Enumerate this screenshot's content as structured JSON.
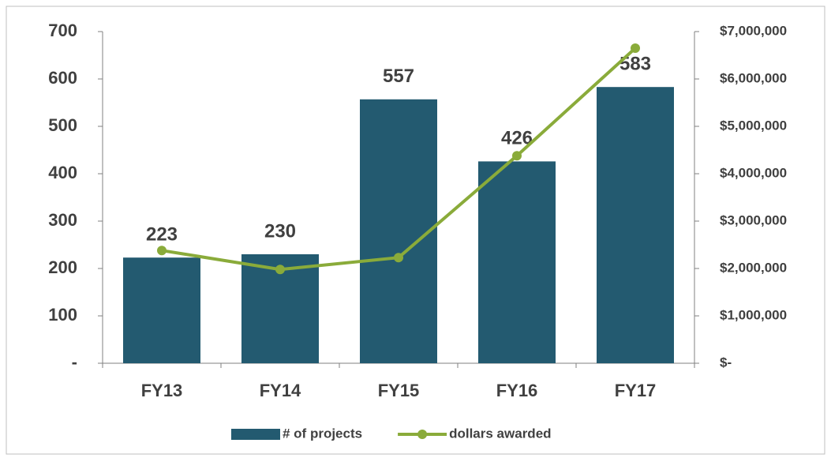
{
  "chart_data": {
    "type": "bar",
    "categories": [
      "FY13",
      "FY14",
      "FY15",
      "FY16",
      "FY17"
    ],
    "series": [
      {
        "name": "# of projects",
        "type": "bar",
        "color": "#235a70",
        "values": [
          223,
          230,
          557,
          426,
          583
        ]
      },
      {
        "name": "dollars awarded",
        "type": "line",
        "axis": "y2",
        "color": "#8aab3a",
        "values": [
          2380000,
          1980000,
          2230000,
          4380000,
          6650000
        ]
      }
    ],
    "ylim": [
      0,
      700
    ],
    "yticks": [
      {
        "value": 0,
        "label": "-"
      },
      100,
      200,
      300,
      400,
      500,
      600,
      700
    ],
    "y2lim": [
      0,
      7000000
    ],
    "y2ticks": [
      {
        "value": 0,
        "label": "$-"
      },
      {
        "value": 1000000,
        "label": "$1,000,000"
      },
      {
        "value": 2000000,
        "label": "$2,000,000"
      },
      {
        "value": 3000000,
        "label": "$3,000,000"
      },
      {
        "value": 4000000,
        "label": "$4,000,000"
      },
      {
        "value": 5000000,
        "label": "$5,000,000"
      },
      {
        "value": 6000000,
        "label": "$6,000,000"
      },
      {
        "value": 7000000,
        "label": "$7,000,000"
      }
    ],
    "data_labels": true,
    "legend": "bottom"
  }
}
